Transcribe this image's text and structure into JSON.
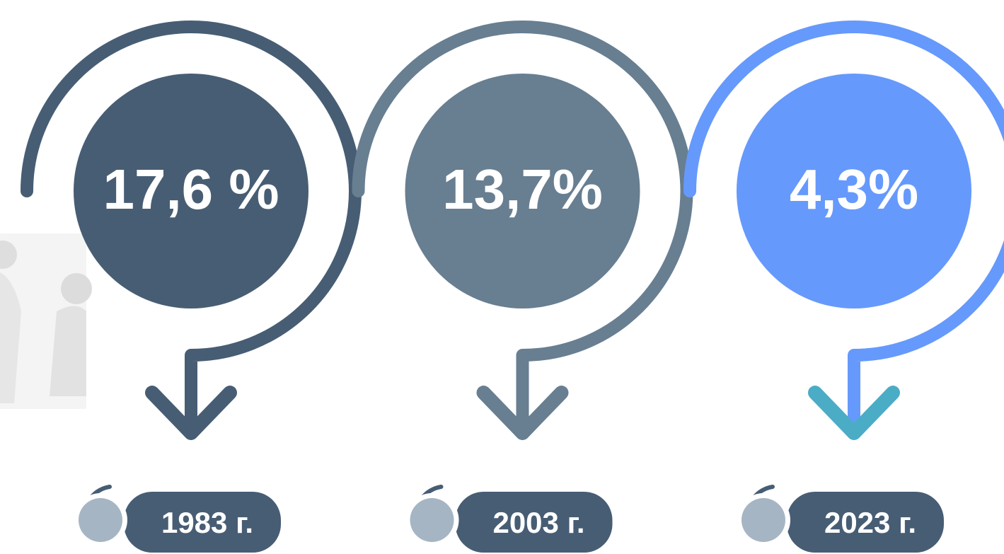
{
  "items": [
    {
      "value": "17,6 %",
      "year": "1983 г."
    },
    {
      "value": "13,7%",
      "year": "2003 г."
    },
    {
      "value": "4,3%",
      "year": "2023 г."
    }
  ]
}
